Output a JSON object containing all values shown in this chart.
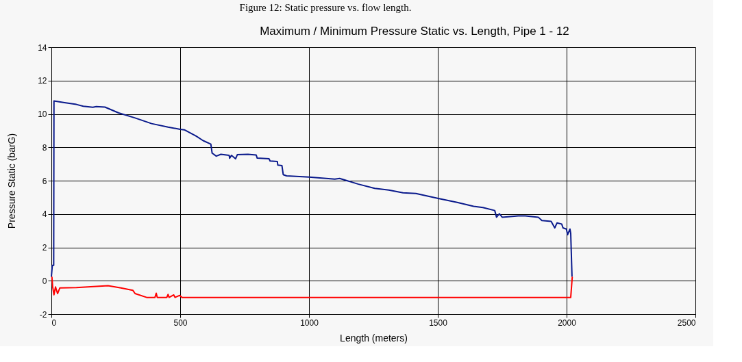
{
  "chart_data": {
    "type": "line",
    "title": "Maximum / Minimum Pressure Static vs. Length, Pipe 1 - 12",
    "xlabel": "Length (meters)",
    "ylabel": "Pressure Static (barG)",
    "annotations": [
      "Figure 12: Static pressure vs. flow length."
    ],
    "xlim": [
      0,
      2500
    ],
    "xticks": [
      0,
      500,
      {
        "value": 1000,
        "label": "1000"
      },
      {
        "value": 1500,
        "label": "1500"
      },
      {
        "value": 2000,
        "label": "2000"
      },
      {
        "value": 2500,
        "label": "2500"
      }
    ],
    "ylim": [
      -2,
      14
    ],
    "yticks": [
      -2,
      0,
      2,
      4,
      6,
      8,
      10,
      12,
      14
    ],
    "grid": true,
    "legend": false,
    "marker": "none",
    "line_style": "solid",
    "series": [
      {
        "color": "#0a1a8c",
        "x": [
          0,
          3.6,
          9,
          10,
          51,
          97,
          124,
          161,
          174,
          208,
          261,
          325,
          389,
          453,
          500,
          516,
          562,
          589,
          619,
          624,
          640,
          658,
          690,
          692,
          699,
          715,
          722,
          763,
          795,
          799,
          845,
          849,
          877,
          879,
          895,
          900,
          913,
          1000,
          1100,
          1119,
          1192,
          1255,
          1310,
          1365,
          1415,
          1502,
          1575,
          1639,
          1675,
          1721,
          1728,
          1739,
          1750,
          1812,
          1840,
          1890,
          1904,
          1940,
          1954,
          1963,
          1981,
          1986,
          1999,
          2004,
          2013,
          2016,
          2021
        ],
        "values": [
          0.24,
          0.92,
          0.92,
          10.78,
          10.68,
          10.57,
          10.46,
          10.4,
          10.44,
          10.41,
          10.06,
          9.76,
          9.42,
          9.21,
          9.08,
          9.05,
          8.67,
          8.4,
          8.19,
          7.65,
          7.47,
          7.58,
          7.52,
          7.34,
          7.52,
          7.31,
          7.56,
          7.58,
          7.54,
          7.35,
          7.31,
          7.18,
          7.15,
          6.93,
          6.9,
          6.36,
          6.29,
          6.22,
          6.09,
          6.13,
          5.79,
          5.54,
          5.44,
          5.27,
          5.23,
          4.93,
          4.7,
          4.46,
          4.39,
          4.21,
          3.81,
          4.02,
          3.81,
          3.89,
          3.89,
          3.81,
          3.61,
          3.56,
          3.17,
          3.47,
          3.4,
          3.17,
          3.1,
          2.76,
          3.1,
          2.83,
          0.24
        ]
      },
      {
        "color": "#ff0000",
        "x": [
          2,
          5,
          10,
          16,
          24,
          33,
          97,
          220,
          270,
          316,
          325,
          370,
          402,
          407,
          411,
          448,
          453,
          457,
          475,
          480,
          498,
          507,
          2016,
          2022
        ],
        "values": [
          0.24,
          -0.37,
          -0.84,
          -0.37,
          -0.77,
          -0.43,
          -0.41,
          -0.3,
          -0.43,
          -0.57,
          -0.77,
          -1.0,
          -1.0,
          -0.75,
          -1.0,
          -1.0,
          -0.82,
          -1.0,
          -0.85,
          -1.0,
          -0.88,
          -1.0,
          -1.0,
          0.24
        ]
      }
    ]
  }
}
